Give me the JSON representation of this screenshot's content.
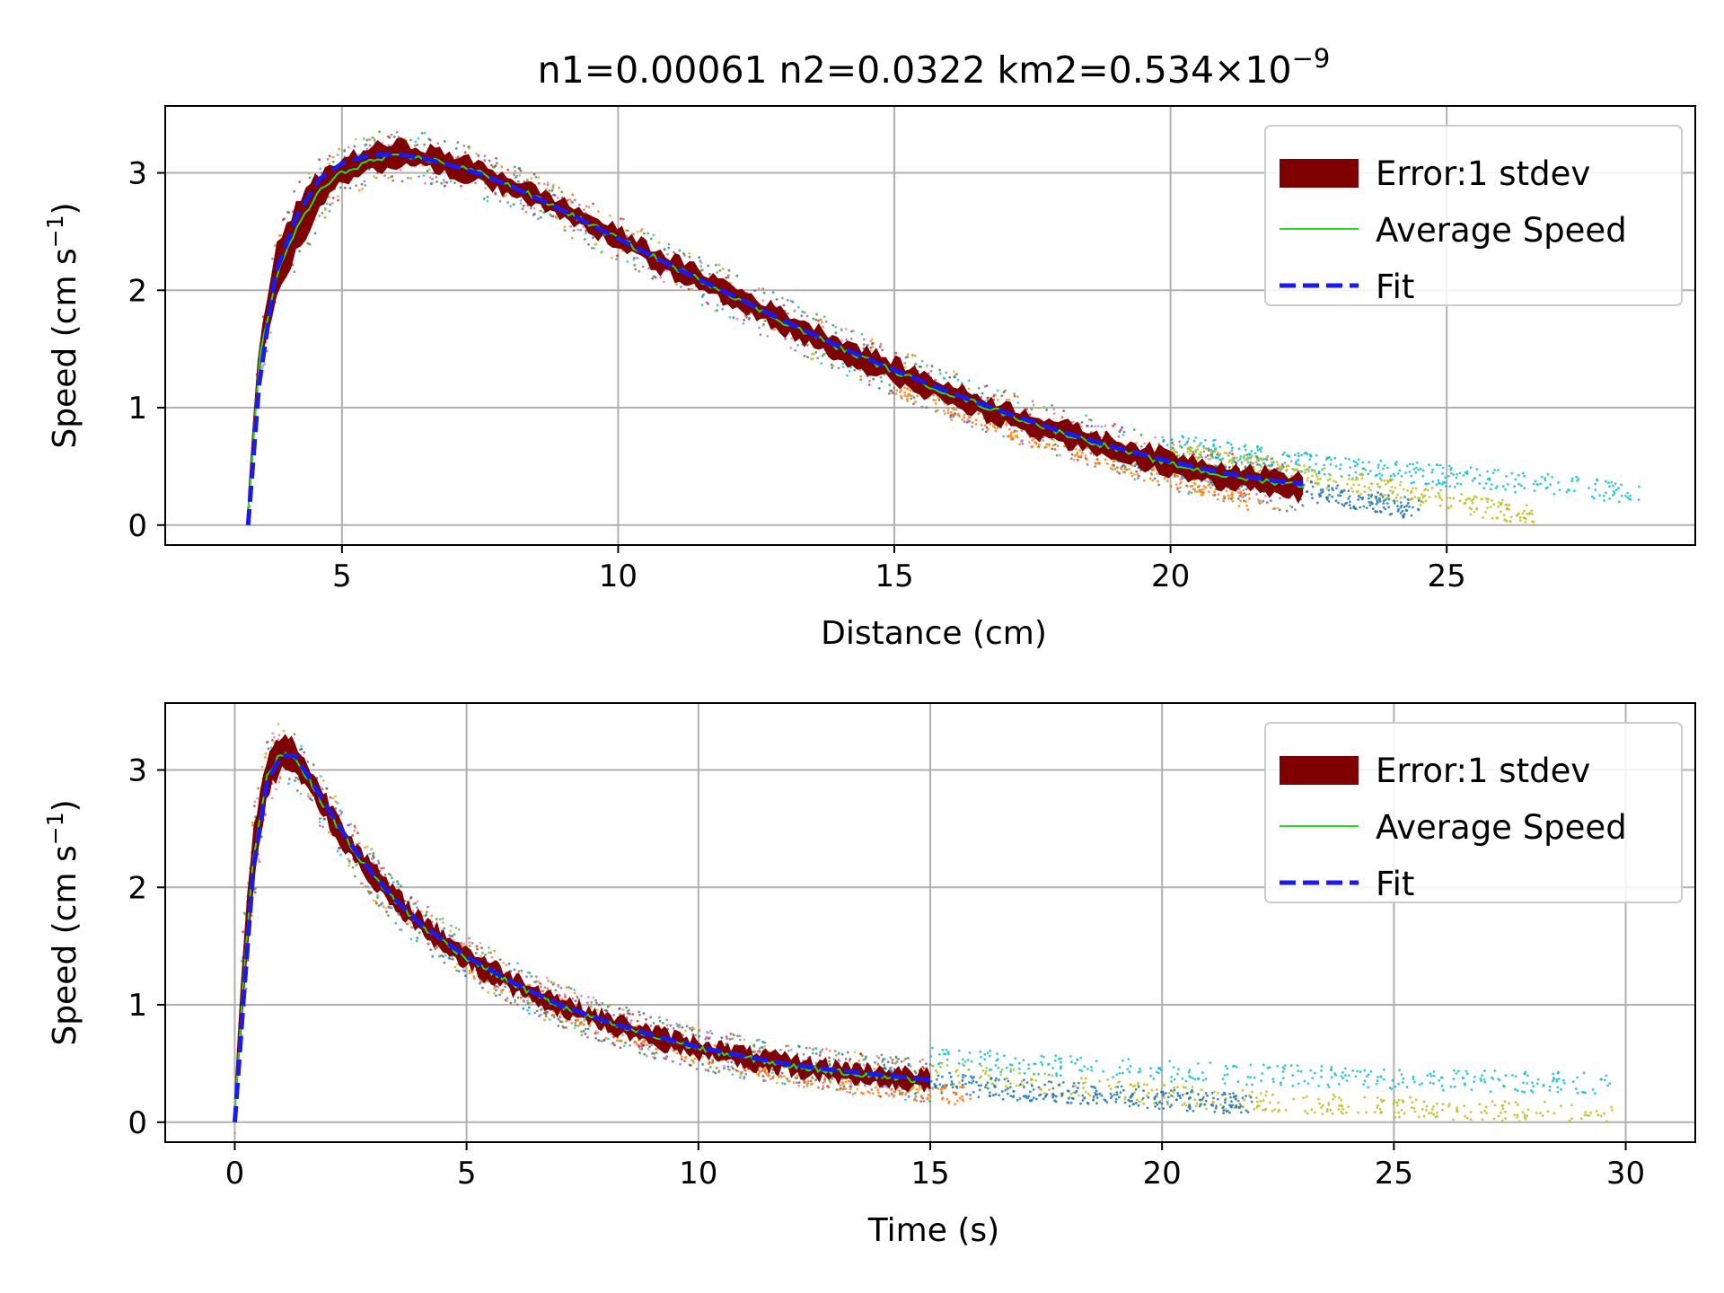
{
  "figure": {
    "title_main": "n1=0.00061 n2=0.0322 km2=0.534×10",
    "title_exp": "−9"
  },
  "chart_data": [
    {
      "type": "line",
      "id": "top",
      "xlabel": "Distance (cm)",
      "ylabel_main": "Speed (cm s",
      "ylabel_exp": "−1",
      "ylabel_close": ")",
      "xlim": [
        1.8,
        29.5
      ],
      "ylim": [
        -0.17,
        3.57
      ],
      "xticks": [
        5,
        10,
        15,
        20,
        25
      ],
      "yticks": [
        0,
        1,
        2,
        3
      ],
      "grid": true,
      "legend_position": "top-right",
      "legend": [
        "Error:1 stdev",
        "Average Speed",
        "Fit"
      ],
      "series": [
        {
          "name": "Error:1 stdev",
          "kind": "band",
          "x": [
            3.3,
            3.5,
            3.8,
            4.2,
            4.6,
            5.0,
            5.5,
            6.0,
            6.5,
            7.0,
            7.5,
            8.0,
            9.0,
            10.0,
            11.0,
            12.0,
            13.0,
            14.0,
            15.0,
            16.0,
            17.0,
            18.0,
            19.0,
            20.0,
            21.0,
            22.0,
            22.4
          ],
          "lower": [
            0.0,
            1.3,
            1.9,
            2.35,
            2.7,
            2.9,
            3.02,
            3.05,
            3.03,
            2.98,
            2.9,
            2.82,
            2.6,
            2.36,
            2.1,
            1.88,
            1.64,
            1.42,
            1.22,
            1.02,
            0.85,
            0.7,
            0.55,
            0.42,
            0.32,
            0.25,
            0.22
          ],
          "upper": [
            0.3,
            1.55,
            2.35,
            2.75,
            3.0,
            3.12,
            3.22,
            3.26,
            3.22,
            3.16,
            3.08,
            2.98,
            2.76,
            2.52,
            2.28,
            2.06,
            1.82,
            1.6,
            1.4,
            1.2,
            1.03,
            0.88,
            0.74,
            0.62,
            0.52,
            0.45,
            0.42
          ]
        },
        {
          "name": "Average Speed",
          "kind": "line",
          "x": [
            3.3,
            3.5,
            3.8,
            4.2,
            4.6,
            5.0,
            5.5,
            6.0,
            6.5,
            7.0,
            7.5,
            8.0,
            9.0,
            10.0,
            11.0,
            12.0,
            13.0,
            14.0,
            15.0,
            16.0,
            17.0,
            18.0,
            19.0,
            20.0,
            21.0,
            22.0,
            22.4
          ],
          "y": [
            0.1,
            1.4,
            2.1,
            2.55,
            2.85,
            3.0,
            3.1,
            3.14,
            3.12,
            3.07,
            3.0,
            2.9,
            2.68,
            2.44,
            2.2,
            1.97,
            1.73,
            1.51,
            1.31,
            1.12,
            0.95,
            0.79,
            0.65,
            0.52,
            0.42,
            0.36,
            0.34
          ]
        },
        {
          "name": "Fit",
          "kind": "dashed",
          "x": [
            3.3,
            3.5,
            3.8,
            4.2,
            4.6,
            5.0,
            5.5,
            6.0,
            6.5,
            7.0,
            7.5,
            8.0,
            9.0,
            10.0,
            11.0,
            12.0,
            13.0,
            14.0,
            15.0,
            16.0,
            17.0,
            18.0,
            19.0,
            20.0,
            21.0,
            22.0,
            22.4
          ],
          "y": [
            0.0,
            1.2,
            2.15,
            2.65,
            2.95,
            3.08,
            3.15,
            3.16,
            3.12,
            3.06,
            2.99,
            2.9,
            2.68,
            2.44,
            2.2,
            1.97,
            1.74,
            1.52,
            1.32,
            1.13,
            0.96,
            0.8,
            0.66,
            0.54,
            0.44,
            0.37,
            0.35
          ]
        },
        {
          "name": "trial-cyan",
          "kind": "scatter",
          "color": "#17becf",
          "x": [
            20,
            22,
            24,
            26,
            28.5
          ],
          "y": [
            0.7,
            0.55,
            0.46,
            0.38,
            0.27
          ]
        },
        {
          "name": "trial-olive",
          "kind": "scatter",
          "color": "#bcbd22",
          "x": [
            20,
            22,
            24,
            25.5,
            26.6
          ],
          "y": [
            0.62,
            0.46,
            0.3,
            0.16,
            0.08
          ]
        },
        {
          "name": "trial-blue",
          "kind": "scatter",
          "color": "#1f77b4",
          "x": [
            19,
            21,
            23,
            24.5
          ],
          "y": [
            0.6,
            0.42,
            0.25,
            0.13
          ]
        },
        {
          "name": "trial-orange",
          "kind": "scatter",
          "color": "#ff7f0e",
          "x": [
            15,
            17,
            19,
            21,
            21.5
          ],
          "y": [
            1.2,
            0.85,
            0.55,
            0.28,
            0.18
          ]
        }
      ]
    },
    {
      "type": "line",
      "id": "bottom",
      "xlabel": "Time (s)",
      "ylabel_main": "Speed (cm s",
      "ylabel_exp": "−1",
      "ylabel_close": ")",
      "xlim": [
        -1.5,
        31.5
      ],
      "ylim": [
        -0.17,
        3.57
      ],
      "xticks": [
        0,
        5,
        10,
        15,
        20,
        25,
        30
      ],
      "yticks": [
        0,
        1,
        2,
        3
      ],
      "grid": true,
      "legend_position": "top-right",
      "legend": [
        "Error:1 stdev",
        "Average Speed",
        "Fit"
      ],
      "series": [
        {
          "name": "Error:1 stdev",
          "kind": "band",
          "x": [
            0.0,
            0.2,
            0.4,
            0.7,
            1.0,
            1.3,
            1.6,
            2.0,
            2.5,
            3.0,
            3.5,
            4.0,
            5.0,
            6.0,
            7.0,
            8.0,
            9.0,
            10.0,
            11.0,
            12.0,
            13.0,
            14.0,
            15.0
          ],
          "lower": [
            0.0,
            1.1,
            2.0,
            2.8,
            3.0,
            2.98,
            2.8,
            2.55,
            2.25,
            2.0,
            1.78,
            1.6,
            1.32,
            1.1,
            0.92,
            0.78,
            0.66,
            0.56,
            0.48,
            0.42,
            0.36,
            0.32,
            0.28
          ],
          "upper": [
            0.3,
            1.6,
            2.5,
            3.1,
            3.3,
            3.24,
            3.02,
            2.76,
            2.45,
            2.18,
            1.96,
            1.77,
            1.48,
            1.26,
            1.07,
            0.92,
            0.8,
            0.7,
            0.62,
            0.55,
            0.5,
            0.46,
            0.42
          ]
        },
        {
          "name": "Average Speed",
          "kind": "line",
          "x": [
            0.0,
            0.2,
            0.4,
            0.7,
            1.0,
            1.3,
            1.6,
            2.0,
            2.5,
            3.0,
            3.5,
            4.0,
            5.0,
            6.0,
            7.0,
            8.0,
            9.0,
            10.0,
            11.0,
            12.0,
            13.0,
            14.0,
            15.0
          ],
          "y": [
            0.1,
            1.3,
            2.25,
            2.95,
            3.15,
            3.11,
            2.91,
            2.65,
            2.35,
            2.09,
            1.87,
            1.68,
            1.4,
            1.18,
            0.99,
            0.85,
            0.73,
            0.63,
            0.55,
            0.48,
            0.43,
            0.39,
            0.35
          ]
        },
        {
          "name": "Fit",
          "kind": "dashed",
          "x": [
            0.0,
            0.2,
            0.4,
            0.7,
            1.0,
            1.3,
            1.6,
            2.0,
            2.5,
            3.0,
            3.5,
            4.0,
            5.0,
            6.0,
            7.0,
            8.0,
            9.0,
            10.0,
            11.0,
            12.0,
            13.0,
            14.0,
            15.0
          ],
          "y": [
            0.0,
            1.1,
            2.15,
            2.9,
            3.12,
            3.12,
            2.94,
            2.68,
            2.37,
            2.1,
            1.88,
            1.69,
            1.41,
            1.19,
            1.0,
            0.86,
            0.74,
            0.64,
            0.56,
            0.49,
            0.44,
            0.4,
            0.36
          ]
        },
        {
          "name": "trial-cyan",
          "kind": "scatter",
          "color": "#17becf",
          "x": [
            15,
            18,
            21,
            24,
            27,
            29.8
          ],
          "y": [
            0.55,
            0.48,
            0.42,
            0.38,
            0.35,
            0.33
          ]
        },
        {
          "name": "trial-olive",
          "kind": "scatter",
          "color": "#bcbd22",
          "x": [
            15,
            18,
            21,
            24,
            27,
            29.8
          ],
          "y": [
            0.45,
            0.3,
            0.2,
            0.14,
            0.1,
            0.07
          ]
        },
        {
          "name": "trial-blue",
          "kind": "scatter",
          "color": "#1f77b4",
          "x": [
            14,
            16,
            18,
            20,
            22
          ],
          "y": [
            0.4,
            0.3,
            0.25,
            0.2,
            0.15
          ]
        },
        {
          "name": "trial-orange",
          "kind": "scatter",
          "color": "#ff7f0e",
          "x": [
            5,
            8,
            11,
            14,
            16
          ],
          "y": [
            1.35,
            0.8,
            0.5,
            0.3,
            0.22
          ]
        }
      ]
    }
  ],
  "colors": {
    "band": "#7f0000",
    "average": "#22dd22",
    "fit": "#1a1aee",
    "grid": "#b0b0b0",
    "axes": "#000000"
  }
}
